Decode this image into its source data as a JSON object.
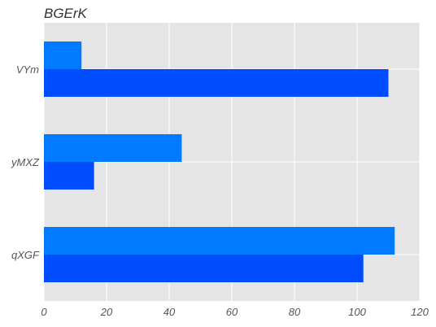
{
  "chart_data": {
    "type": "bar",
    "orientation": "horizontal",
    "title": "BGErK",
    "xlabel": "",
    "ylabel": "",
    "categories": [
      "VYm",
      "yMXZ",
      "qXGF"
    ],
    "series": [
      {
        "values": [
          12,
          44,
          112
        ],
        "color": "#007bff"
      },
      {
        "values": [
          110,
          16,
          102
        ],
        "color": "#004dff"
      }
    ],
    "xlim": [
      0,
      120
    ],
    "xticks": [
      0,
      20,
      40,
      60,
      80,
      100,
      120
    ],
    "grid": true,
    "background_color": "#e5e5e5",
    "legend": "none"
  }
}
